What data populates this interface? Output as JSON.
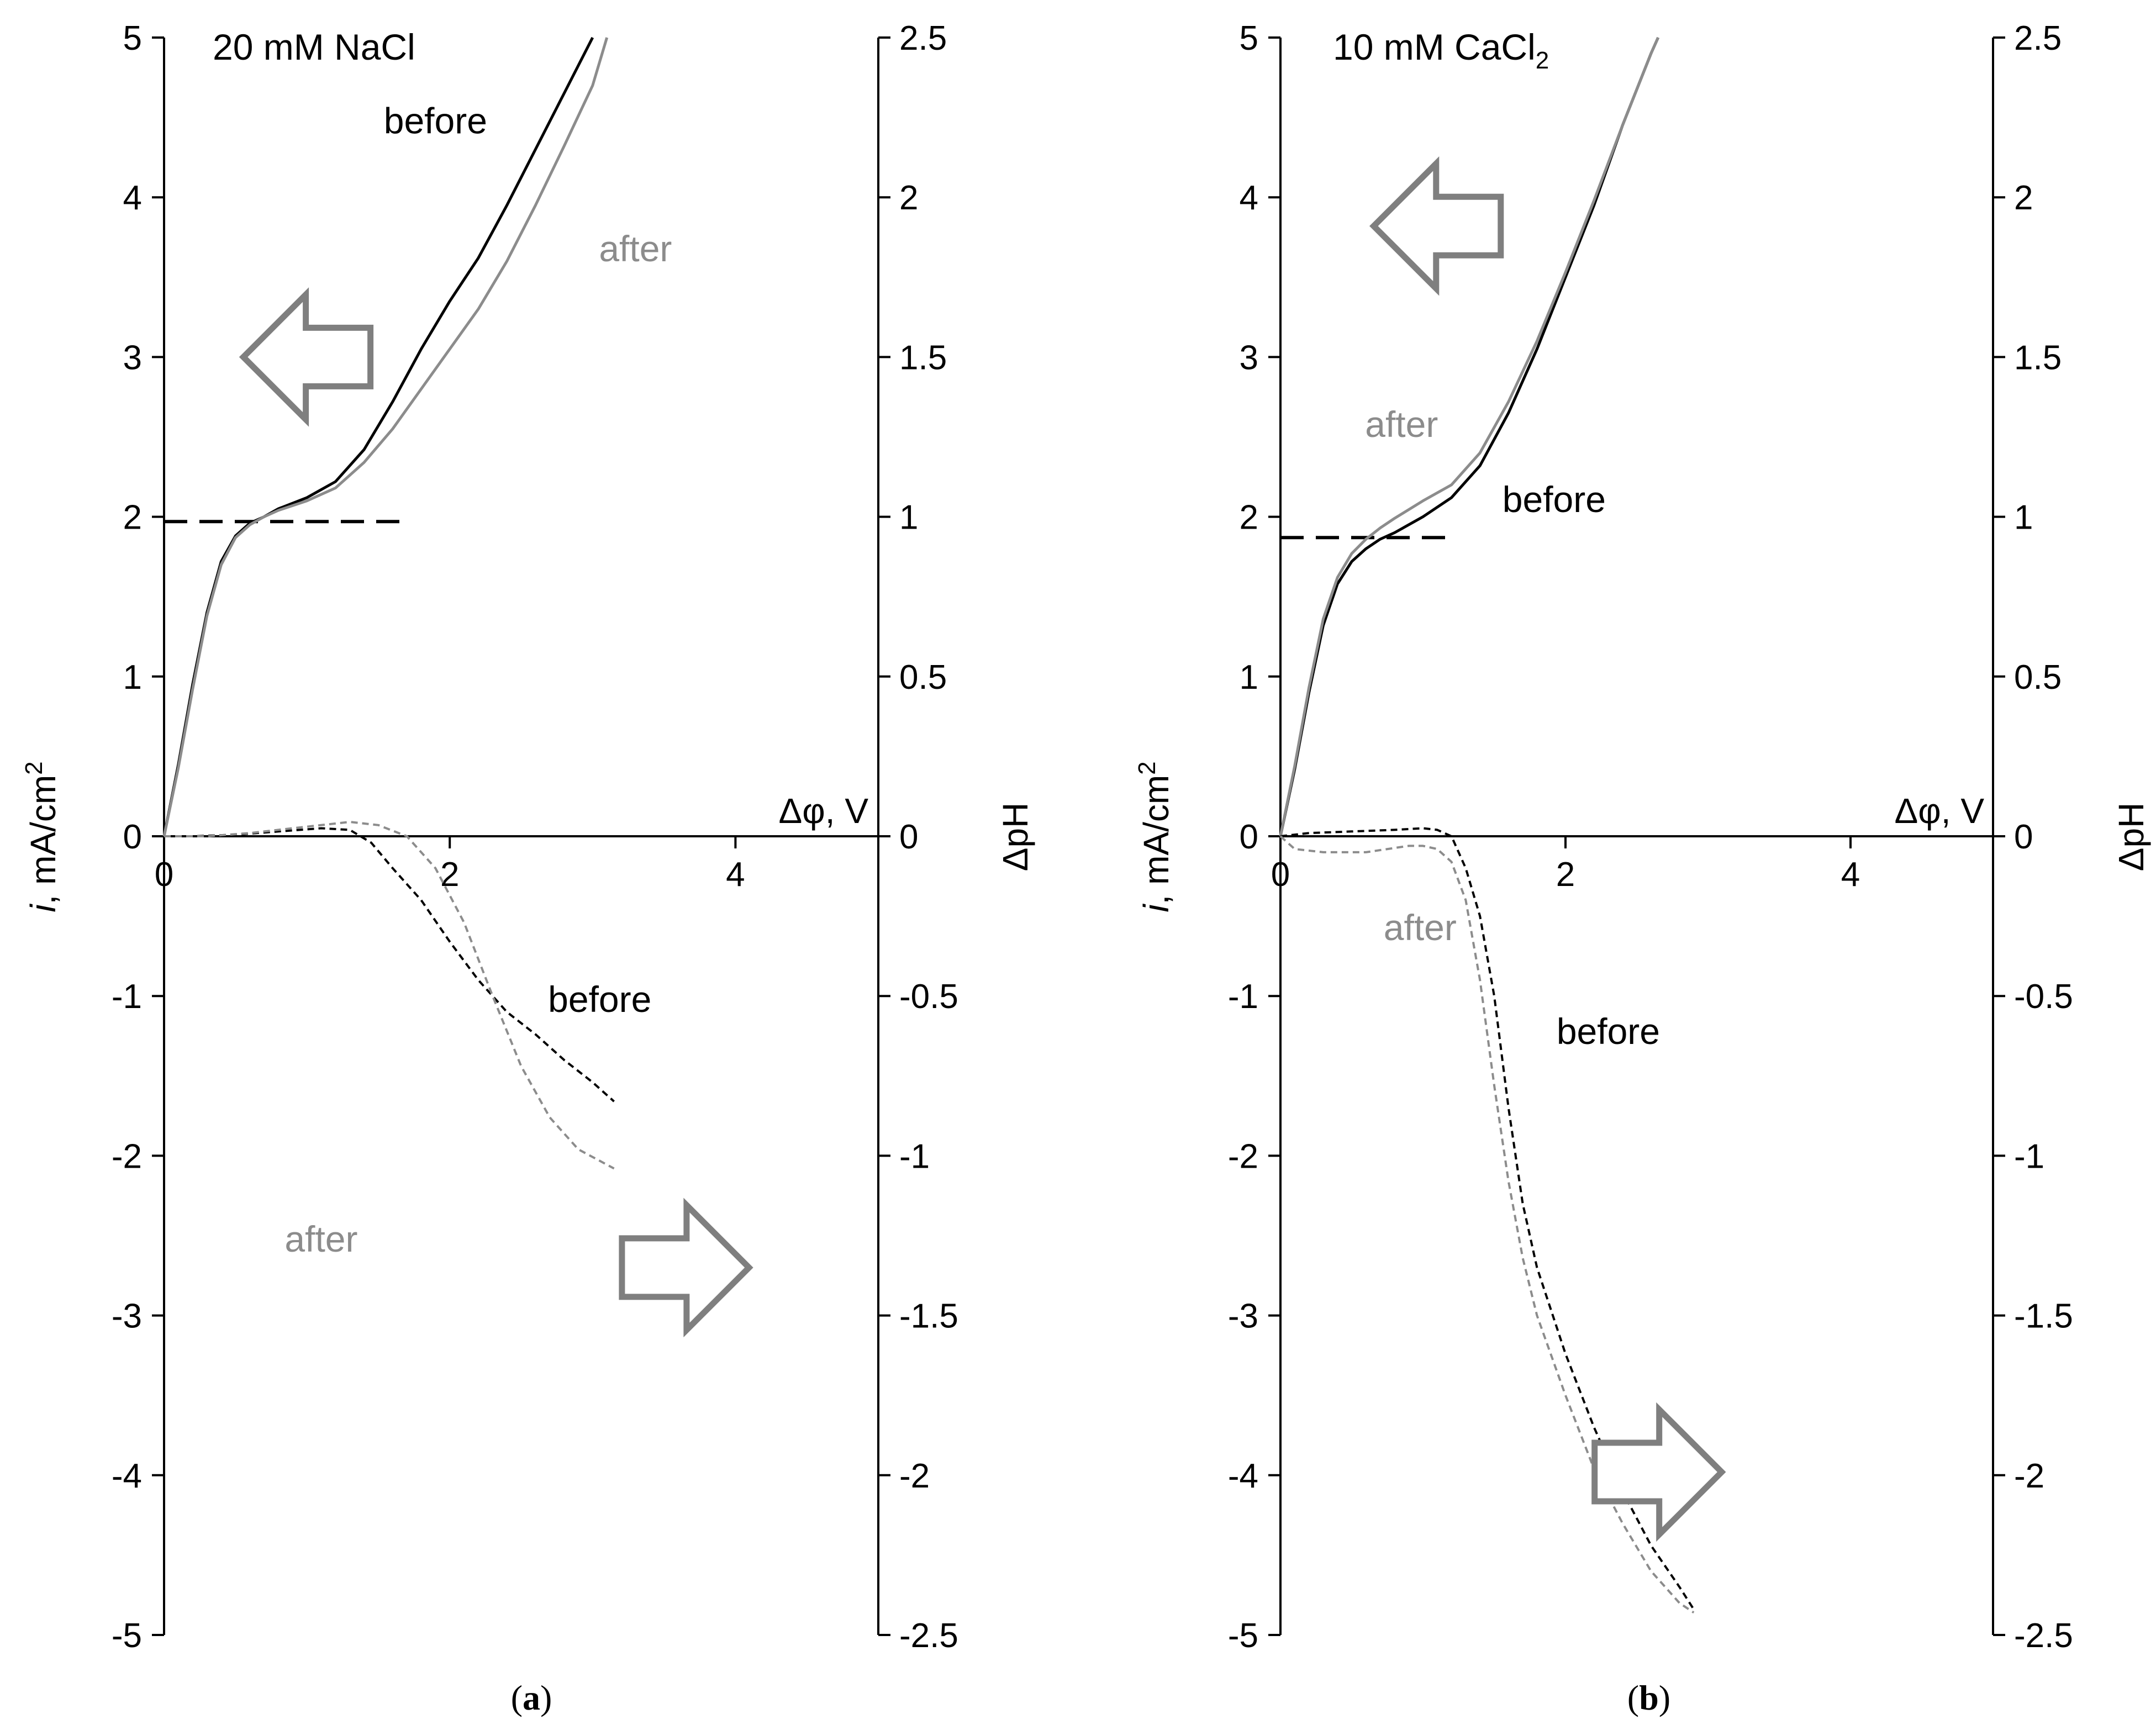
{
  "colors": {
    "before": "#000000",
    "after": "#8c8c8c",
    "arrow": "#7f7f7f",
    "axis": "#000000"
  },
  "chart_data": [
    {
      "type": "line",
      "panel_label": "a",
      "title": "20 mM NaCl",
      "xlabel": "Δφ, V",
      "ylabel_left_italic": "i",
      "ylabel_left_rest": ", mA/cm",
      "ylabel_left_sup": "2",
      "ylabel_right": "ΔpH",
      "xlim": [
        0,
        5
      ],
      "xticks": [
        "0",
        "2",
        "4"
      ],
      "ylim_left": [
        -5,
        5
      ],
      "yticks_left": [
        "5",
        "4",
        "3",
        "2",
        "1",
        "0",
        "-1",
        "-2",
        "-3",
        "-4",
        "-5"
      ],
      "ylim_right": [
        -2.5,
        2.5
      ],
      "yticks_right": [
        "2.5",
        "2",
        "1.5",
        "1",
        "0.5",
        "0",
        "-0.5",
        "-1",
        "-1.5",
        "-2",
        "-2.5"
      ],
      "grid": false,
      "limiting_current": {
        "y": 1.97,
        "x": [
          0,
          1.65
        ]
      },
      "annotations": [
        {
          "text": "before",
          "x": 1.9,
          "y": 4.4,
          "series": "before"
        },
        {
          "text": "after",
          "x": 3.3,
          "y": 3.6,
          "series": "after"
        },
        {
          "text": "before",
          "x": 3.05,
          "y": -1.1,
          "series": "before"
        },
        {
          "text": "after",
          "x": 1.1,
          "y": -2.6,
          "series": "after"
        }
      ],
      "arrows": [
        {
          "direction": "left",
          "axis": "left",
          "x": 1.0,
          "y": 3.0
        },
        {
          "direction": "right",
          "axis": "right",
          "x": 3.65,
          "y": -1.35
        }
      ],
      "series": [
        {
          "name": "before",
          "axis": "left",
          "style": "solid",
          "x": [
            0,
            0.1,
            0.2,
            0.3,
            0.4,
            0.5,
            0.6,
            0.7,
            0.8,
            1.0,
            1.2,
            1.4,
            1.6,
            1.8,
            2.0,
            2.2,
            2.4,
            2.6,
            2.8,
            3.0
          ],
          "y": [
            0,
            0.45,
            0.95,
            1.4,
            1.72,
            1.88,
            1.96,
            2.0,
            2.05,
            2.12,
            2.22,
            2.42,
            2.72,
            3.05,
            3.35,
            3.62,
            3.95,
            4.3,
            4.65,
            5.0
          ]
        },
        {
          "name": "after",
          "axis": "left",
          "style": "solid",
          "x": [
            0,
            0.1,
            0.2,
            0.3,
            0.4,
            0.5,
            0.6,
            0.7,
            0.8,
            1.0,
            1.2,
            1.4,
            1.6,
            1.8,
            2.0,
            2.2,
            2.4,
            2.6,
            2.8,
            3.0,
            3.1
          ],
          "y": [
            0,
            0.43,
            0.92,
            1.38,
            1.7,
            1.87,
            1.95,
            2.0,
            2.04,
            2.1,
            2.18,
            2.34,
            2.55,
            2.8,
            3.05,
            3.3,
            3.6,
            3.95,
            4.32,
            4.7,
            5.0
          ]
        },
        {
          "name": "before",
          "axis": "right",
          "style": "dashed",
          "x": [
            0,
            0.2,
            0.5,
            0.8,
            1.1,
            1.3,
            1.45,
            1.6,
            1.8,
            2.0,
            2.2,
            2.4,
            2.6,
            2.8,
            3.0,
            3.15
          ],
          "y": [
            0,
            0.0,
            0.005,
            0.015,
            0.025,
            0.02,
            -0.02,
            -0.1,
            -0.2,
            -0.33,
            -0.45,
            -0.55,
            -0.62,
            -0.7,
            -0.77,
            -0.83
          ]
        },
        {
          "name": "after",
          "axis": "right",
          "style": "dashed",
          "x": [
            0,
            0.3,
            0.6,
            0.9,
            1.1,
            1.3,
            1.5,
            1.7,
            1.9,
            2.1,
            2.3,
            2.5,
            2.7,
            2.9,
            3.15
          ],
          "y": [
            0,
            0.0,
            0.01,
            0.025,
            0.035,
            0.045,
            0.035,
            0.0,
            -0.1,
            -0.27,
            -0.5,
            -0.72,
            -0.88,
            -0.98,
            -1.04
          ]
        }
      ]
    },
    {
      "type": "line",
      "panel_label": "b",
      "title_main": "10 mM CaCl",
      "title_sub": "2",
      "xlabel": "Δφ, V",
      "ylabel_left_italic": "i",
      "ylabel_left_rest": ", mA/cm",
      "ylabel_left_sup": "2",
      "ylabel_right": "ΔpH",
      "xlim": [
        0,
        5
      ],
      "xticks": [
        "0",
        "2",
        "4"
      ],
      "ylim_left": [
        -5,
        5
      ],
      "yticks_left": [
        "5",
        "4",
        "3",
        "2",
        "1",
        "0",
        "-1",
        "-2",
        "-3",
        "-4",
        "-5"
      ],
      "ylim_right": [
        -2.5,
        2.5
      ],
      "yticks_right": [
        "2.5",
        "2",
        "1.5",
        "1",
        "0.5",
        "0",
        "-0.5",
        "-1",
        "-1.5",
        "-2",
        "-2.5"
      ],
      "grid": false,
      "limiting_current": {
        "y": 1.87,
        "x": [
          0,
          1.22
        ]
      },
      "annotations": [
        {
          "text": "after",
          "x": 0.85,
          "y": 2.5,
          "series": "after"
        },
        {
          "text": "before",
          "x": 1.92,
          "y": 2.03,
          "series": "before"
        },
        {
          "text": "after",
          "x": 0.98,
          "y": -0.65,
          "series": "after"
        },
        {
          "text": "before",
          "x": 2.3,
          "y": -1.3,
          "series": "before"
        }
      ],
      "arrows": [
        {
          "direction": "left",
          "axis": "left",
          "x": 1.1,
          "y": 3.82
        },
        {
          "direction": "right",
          "axis": "right",
          "x": 2.65,
          "y": -1.99
        }
      ],
      "series": [
        {
          "name": "before",
          "axis": "left",
          "style": "solid",
          "x": [
            0,
            0.1,
            0.2,
            0.3,
            0.4,
            0.5,
            0.6,
            0.7,
            0.8,
            1.0,
            1.2,
            1.4,
            1.6,
            1.8,
            2.0,
            2.2,
            2.4,
            2.6,
            2.65
          ],
          "y": [
            0,
            0.42,
            0.9,
            1.32,
            1.58,
            1.72,
            1.8,
            1.86,
            1.9,
            2.0,
            2.12,
            2.32,
            2.65,
            3.05,
            3.5,
            3.95,
            4.45,
            4.9,
            5.0
          ]
        },
        {
          "name": "after",
          "axis": "left",
          "style": "solid",
          "x": [
            0,
            0.1,
            0.2,
            0.3,
            0.4,
            0.5,
            0.6,
            0.7,
            0.8,
            1.0,
            1.2,
            1.4,
            1.6,
            1.8,
            2.0,
            2.2,
            2.4,
            2.6,
            2.65
          ],
          "y": [
            0,
            0.44,
            0.93,
            1.36,
            1.62,
            1.77,
            1.86,
            1.93,
            1.99,
            2.1,
            2.2,
            2.4,
            2.72,
            3.1,
            3.53,
            3.98,
            4.45,
            4.9,
            5.0
          ]
        },
        {
          "name": "before",
          "axis": "right",
          "style": "dashed",
          "x": [
            0,
            0.2,
            0.5,
            0.8,
            1.0,
            1.1,
            1.2,
            1.3,
            1.4,
            1.5,
            1.6,
            1.7,
            1.8,
            2.0,
            2.2,
            2.4,
            2.6,
            2.8,
            2.9
          ],
          "y": [
            0,
            0.01,
            0.015,
            0.02,
            0.025,
            0.02,
            0.0,
            -0.1,
            -0.25,
            -0.5,
            -0.85,
            -1.15,
            -1.35,
            -1.62,
            -1.85,
            -2.05,
            -2.22,
            -2.35,
            -2.42
          ]
        },
        {
          "name": "after",
          "axis": "right",
          "style": "dashed",
          "x": [
            0,
            0.1,
            0.3,
            0.6,
            0.9,
            1.0,
            1.1,
            1.2,
            1.3,
            1.4,
            1.5,
            1.6,
            1.7,
            1.8,
            2.0,
            2.2,
            2.4,
            2.6,
            2.8,
            2.9
          ],
          "y": [
            0,
            -0.04,
            -0.05,
            -0.05,
            -0.03,
            -0.03,
            -0.04,
            -0.08,
            -0.2,
            -0.45,
            -0.78,
            -1.08,
            -1.32,
            -1.5,
            -1.75,
            -1.98,
            -2.15,
            -2.3,
            -2.4,
            -2.43
          ]
        }
      ]
    }
  ]
}
